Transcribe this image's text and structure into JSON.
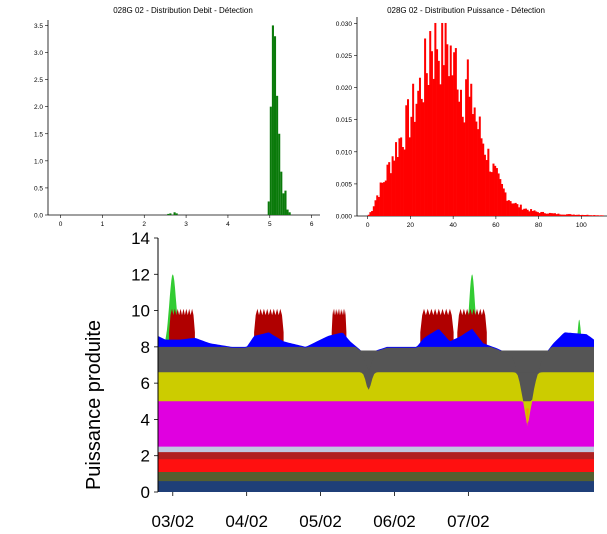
{
  "colors": {
    "debit_bars": "#0a7a0a",
    "puissance_bars": "#ff0000",
    "layers": [
      "#1f3f78",
      "#555f30",
      "#ff1010",
      "#b02020",
      "#bfc9e0",
      "#e000e0",
      "#cccc00",
      "#555555",
      "#0000ff",
      "#b00000",
      "#33cc33",
      "#f0a000"
    ]
  },
  "chart_data": [
    {
      "type": "bar",
      "title": "028G 02 - Distribution Debit - Détection",
      "xlabel": "",
      "ylabel": "",
      "xlim": [
        -0.3,
        6.2
      ],
      "ylim": [
        0,
        3.6
      ],
      "x_ticks": [
        "0",
        "1",
        "2",
        "3",
        "4",
        "5",
        "6"
      ],
      "y_ticks": [
        "0.0",
        "0.5",
        "1.0",
        "1.5",
        "2.0",
        "2.5",
        "3.0",
        "3.5"
      ],
      "bin_width": 0.05,
      "bins": [
        {
          "x": 2.55,
          "y": 0.02
        },
        {
          "x": 2.6,
          "y": 0.03
        },
        {
          "x": 2.7,
          "y": 0.05
        },
        {
          "x": 2.75,
          "y": 0.03
        },
        {
          "x": 4.95,
          "y": 0.25
        },
        {
          "x": 5.0,
          "y": 2.0
        },
        {
          "x": 5.05,
          "y": 3.5
        },
        {
          "x": 5.1,
          "y": 3.3
        },
        {
          "x": 5.15,
          "y": 2.2
        },
        {
          "x": 5.2,
          "y": 1.5
        },
        {
          "x": 5.25,
          "y": 0.8
        },
        {
          "x": 5.3,
          "y": 0.4
        },
        {
          "x": 5.35,
          "y": 0.45
        },
        {
          "x": 5.4,
          "y": 0.1
        },
        {
          "x": 5.45,
          "y": 0.05
        }
      ]
    },
    {
      "type": "bar",
      "title": "028G 02 - Distribution Puissance - Détection",
      "xlabel": "",
      "ylabel": "",
      "xlim": [
        -5,
        112
      ],
      "ylim": [
        0,
        0.031
      ],
      "x_ticks": [
        "0",
        "20",
        "40",
        "60",
        "80",
        "100"
      ],
      "y_ticks": [
        "0.000",
        "0.005",
        "0.010",
        "0.015",
        "0.020",
        "0.025",
        "0.030"
      ],
      "bin_width": 0.8,
      "curve_knots": [
        [
          0,
          0
        ],
        [
          2,
          0.001
        ],
        [
          4,
          0.003
        ],
        [
          8,
          0.006
        ],
        [
          12,
          0.01
        ],
        [
          16,
          0.013
        ],
        [
          20,
          0.016
        ],
        [
          24,
          0.02
        ],
        [
          28,
          0.024
        ],
        [
          31,
          0.027
        ],
        [
          34,
          0.027
        ],
        [
          38,
          0.025
        ],
        [
          42,
          0.022
        ],
        [
          46,
          0.019
        ],
        [
          50,
          0.016
        ],
        [
          54,
          0.012
        ],
        [
          58,
          0.008
        ],
        [
          62,
          0.005
        ],
        [
          66,
          0.0028
        ],
        [
          70,
          0.0017
        ],
        [
          75,
          0.001
        ],
        [
          80,
          0.0006
        ],
        [
          90,
          0.0003
        ],
        [
          100,
          0.0002
        ],
        [
          110,
          0.0001
        ]
      ],
      "peaks": [
        [
          29,
          0.029
        ],
        [
          32,
          0.029
        ],
        [
          36,
          0.028
        ],
        [
          38,
          0.026
        ],
        [
          41,
          0.025
        ],
        [
          46,
          0.023
        ],
        [
          49,
          0.018
        ]
      ]
    },
    {
      "type": "area",
      "title": "",
      "xlabel": "",
      "ylabel": "Puissance produite",
      "xlim": [
        0,
        5.9
      ],
      "ylim": [
        0,
        14
      ],
      "x_ticks": [
        "03/02",
        "04/02",
        "05/02",
        "06/02",
        "07/02"
      ],
      "y_ticks": [
        "0",
        "2",
        "4",
        "6",
        "8",
        "10",
        "12",
        "14"
      ],
      "layers": [
        {
          "bottom": 0,
          "top": 0.6
        },
        {
          "bottom": 0.6,
          "top": 1.1
        },
        {
          "bottom": 1.1,
          "top": 1.8
        },
        {
          "bottom": 1.8,
          "top": 2.2
        },
        {
          "bottom": 2.2,
          "top": 2.5
        },
        {
          "bottom": 2.5,
          "top": 5.0,
          "dip_to": 3.6
        },
        {
          "bottom": 5.0,
          "top": 6.6
        },
        {
          "bottom": 6.6,
          "top": 7.8
        },
        {
          "bottom": 7.8,
          "top": 8.0
        }
      ],
      "blue_profile": [
        [
          0,
          8.6
        ],
        [
          0.1,
          8.4
        ],
        [
          0.3,
          8.4
        ],
        [
          0.5,
          8.5
        ],
        [
          0.7,
          8.2
        ],
        [
          1.0,
          8.0
        ],
        [
          1.2,
          8.0
        ],
        [
          1.3,
          8.6
        ],
        [
          1.5,
          8.8
        ],
        [
          1.7,
          8.3
        ],
        [
          2.0,
          8.0
        ],
        [
          2.3,
          8.6
        ],
        [
          2.5,
          8.8
        ],
        [
          2.6,
          8.3
        ],
        [
          2.75,
          7.8
        ],
        [
          2.85,
          6.7
        ],
        [
          2.95,
          7.8
        ],
        [
          3.1,
          8.0
        ],
        [
          3.5,
          8.0
        ],
        [
          3.6,
          8.5
        ],
        [
          3.8,
          9.0
        ],
        [
          3.95,
          8.3
        ],
        [
          4.1,
          8.6
        ],
        [
          4.25,
          9.0
        ],
        [
          4.4,
          8.2
        ],
        [
          4.6,
          7.9
        ],
        [
          4.8,
          7.5
        ],
        [
          4.9,
          6.0
        ],
        [
          5.0,
          3.6
        ],
        [
          5.1,
          6.0
        ],
        [
          5.2,
          7.4
        ],
        [
          5.35,
          8.2
        ],
        [
          5.5,
          8.8
        ],
        [
          5.8,
          8.7
        ],
        [
          5.9,
          8.4
        ]
      ],
      "red_blocks": [
        [
          0.15,
          0.5,
          10.0
        ],
        [
          1.3,
          1.7,
          10.0
        ],
        [
          2.35,
          2.55,
          10.0
        ],
        [
          3.55,
          4.0,
          10.0
        ],
        [
          4.05,
          4.45,
          10.0
        ]
      ],
      "green_peaks": [
        [
          0.2,
          12.0,
          0.12
        ],
        [
          4.25,
          12.0,
          0.1
        ],
        [
          5.7,
          9.5,
          0.05
        ]
      ],
      "annotations": []
    }
  ]
}
